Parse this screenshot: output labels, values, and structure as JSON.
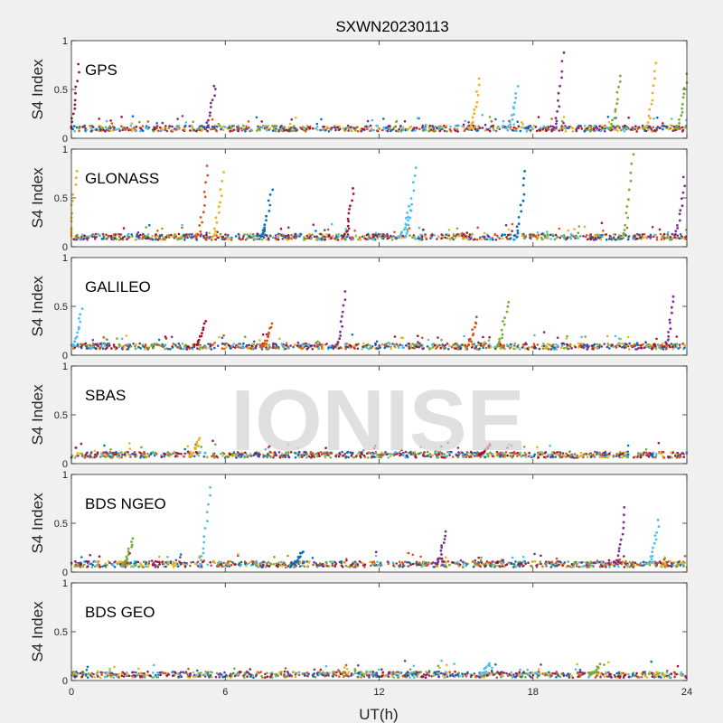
{
  "chart_data": {
    "type": "scatter",
    "title": "SXWN20230113",
    "xlabel": "UT(h)",
    "ylabel": "S4 Index",
    "xlim": [
      0,
      24
    ],
    "ylim": [
      0,
      1
    ],
    "x_ticks": [
      "0",
      "6",
      "12",
      "18",
      "24"
    ],
    "y_ticks": [
      "0",
      "0.5",
      "1"
    ],
    "watermark": "IONISE",
    "series_colors": [
      "#0072BD",
      "#D95319",
      "#EDB120",
      "#7E2F8E",
      "#77AC30",
      "#4DBEEE",
      "#A2142F"
    ],
    "panels": [
      {
        "label": "GPS",
        "baseline": 0.1,
        "spikes": [
          {
            "x": 0.3,
            "y": 0.75,
            "s": 6
          },
          {
            "x": 5.6,
            "y": 0.55,
            "s": 3
          },
          {
            "x": 15.9,
            "y": 0.6,
            "s": 2
          },
          {
            "x": 17.4,
            "y": 0.52,
            "s": 5
          },
          {
            "x": 19.2,
            "y": 0.88,
            "s": 3
          },
          {
            "x": 21.4,
            "y": 0.65,
            "s": 4
          },
          {
            "x": 22.8,
            "y": 0.76,
            "s": 2
          },
          {
            "x": 24.0,
            "y": 0.65,
            "s": 4
          }
        ]
      },
      {
        "label": "GLONASS",
        "baseline": 0.1,
        "spikes": [
          {
            "x": 0.2,
            "y": 0.78,
            "s": 2
          },
          {
            "x": 5.3,
            "y": 0.82,
            "s": 1
          },
          {
            "x": 5.9,
            "y": 0.75,
            "s": 2
          },
          {
            "x": 7.8,
            "y": 0.58,
            "s": 0
          },
          {
            "x": 11.0,
            "y": 0.6,
            "s": 6
          },
          {
            "x": 13.2,
            "y": 0.42,
            "s": 5
          },
          {
            "x": 13.4,
            "y": 0.82,
            "s": 5
          },
          {
            "x": 17.7,
            "y": 0.78,
            "s": 0
          },
          {
            "x": 21.9,
            "y": 0.95,
            "s": 4
          },
          {
            "x": 23.9,
            "y": 0.7,
            "s": 3
          }
        ]
      },
      {
        "label": "GALILEO",
        "baseline": 0.09,
        "spikes": [
          {
            "x": 0.4,
            "y": 0.47,
            "s": 5
          },
          {
            "x": 5.2,
            "y": 0.35,
            "s": 6
          },
          {
            "x": 7.8,
            "y": 0.32,
            "s": 1
          },
          {
            "x": 10.7,
            "y": 0.64,
            "s": 3
          },
          {
            "x": 15.8,
            "y": 0.38,
            "s": 1
          },
          {
            "x": 17.0,
            "y": 0.55,
            "s": 4
          },
          {
            "x": 23.5,
            "y": 0.6,
            "s": 3
          }
        ]
      },
      {
        "label": "SBAS",
        "baseline": 0.09,
        "spikes": [
          {
            "x": 5.0,
            "y": 0.25,
            "s": 2
          },
          {
            "x": 16.3,
            "y": 0.2,
            "s": 6
          }
        ]
      },
      {
        "label": "BDS NGEO",
        "baseline": 0.08,
        "spikes": [
          {
            "x": 2.4,
            "y": 0.35,
            "s": 4
          },
          {
            "x": 5.4,
            "y": 0.88,
            "s": 5
          },
          {
            "x": 9.0,
            "y": 0.22,
            "s": 0
          },
          {
            "x": 14.6,
            "y": 0.42,
            "s": 3
          },
          {
            "x": 21.6,
            "y": 0.65,
            "s": 3
          },
          {
            "x": 22.9,
            "y": 0.52,
            "s": 5
          }
        ]
      },
      {
        "label": "BDS GEO",
        "baseline": 0.06,
        "spikes": [
          {
            "x": 16.3,
            "y": 0.17,
            "s": 5
          },
          {
            "x": 20.6,
            "y": 0.16,
            "s": 4
          }
        ]
      }
    ]
  }
}
